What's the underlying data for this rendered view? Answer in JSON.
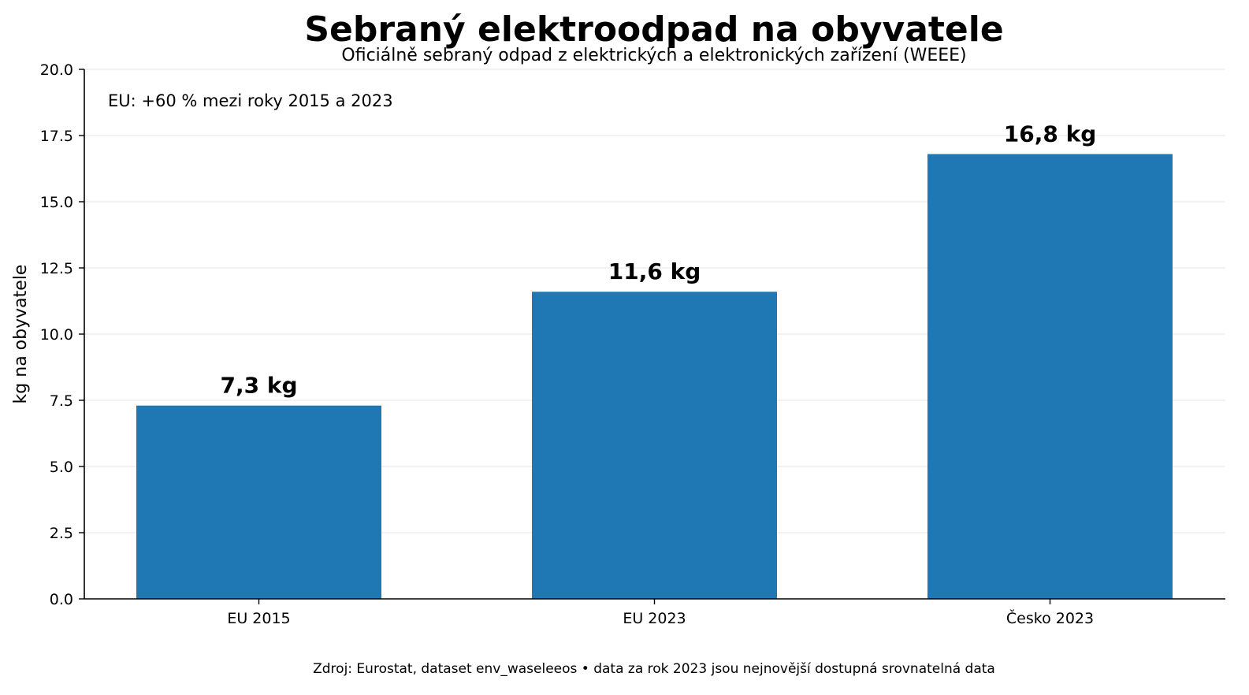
{
  "chart_data": {
    "type": "bar",
    "title": "Sebraný elektroodpad na obyvatele",
    "subtitle": "Oficiálně sebraný odpad z elektrických a elektronických zařízení (WEEE)",
    "ylabel": "kg na obyvatele",
    "xlabel": "",
    "ylim": [
      0,
      20
    ],
    "yticks": [
      "0.0",
      "2.5",
      "5.0",
      "7.5",
      "10.0",
      "12.5",
      "15.0",
      "17.5",
      "20.0"
    ],
    "categories": [
      "EU 2015",
      "EU 2023",
      "Česko 2023"
    ],
    "values": [
      7.3,
      11.6,
      16.8
    ],
    "data_labels": [
      "7,3 kg",
      "11,6 kg",
      "16,8 kg"
    ],
    "annotation": "EU: +60 % mezi roky 2015 a 2023",
    "source": "Zdroj: Eurostat, dataset env_waseleeos • data za rok 2023 jsou nejnovější dostupná srovnatelná data",
    "bar_color": "#1f77b4",
    "grid": "horizontal",
    "legend": "none"
  }
}
